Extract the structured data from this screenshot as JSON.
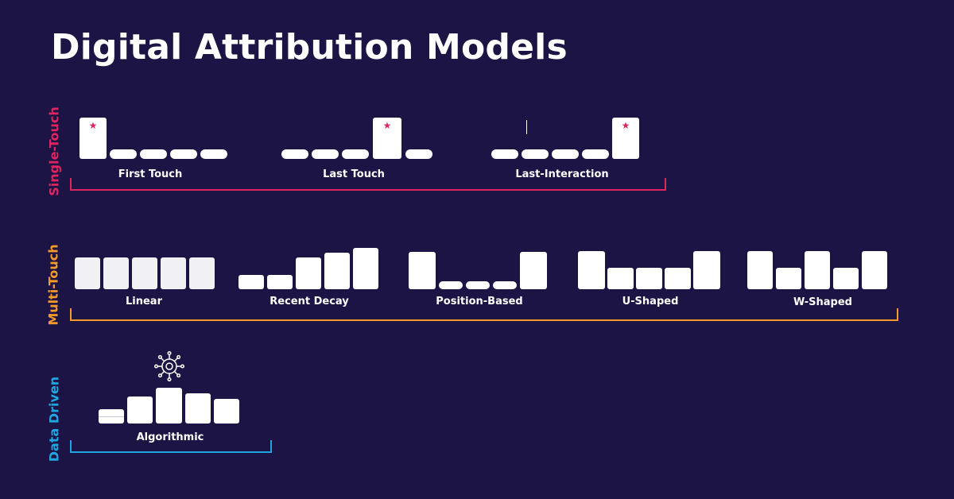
{
  "title": "Digital Attribution Models",
  "colors": {
    "background": "#1c1445",
    "single_touch": "#e0245e",
    "multi_touch": "#f39a2b",
    "data_driven": "#1fa6e0",
    "bar": "#ffffff",
    "star": "#e0245e"
  },
  "groups": {
    "single_touch": {
      "label": "Single-Touch",
      "models": [
        {
          "name": "First Touch",
          "credit_pct": [
            100,
            0,
            0,
            0,
            0
          ],
          "star_index": 0
        },
        {
          "name": "Last Touch",
          "credit_pct": [
            0,
            0,
            0,
            100,
            0
          ],
          "star_index": 3
        },
        {
          "name": "Last-Interaction",
          "credit_pct": [
            0,
            0,
            0,
            0,
            100
          ],
          "star_index": 4
        }
      ]
    },
    "multi_touch": {
      "label": "Multi-Touch",
      "models": [
        {
          "name": "Linear",
          "credit_pct": [
            20,
            20,
            20,
            20,
            20
          ]
        },
        {
          "name": "Recent Decay",
          "credit_pct": [
            6,
            6,
            13,
            16,
            19
          ]
        },
        {
          "name": "Position-Based",
          "credit_pct": [
            40,
            6.7,
            6.7,
            6.7,
            40
          ]
        },
        {
          "name": "U-Shaped",
          "credit_pct": [
            40,
            6.7,
            6.7,
            6.7,
            40
          ]
        },
        {
          "name": "W-Shaped",
          "credit_pct": [
            30,
            13,
            30,
            13,
            30
          ]
        }
      ]
    },
    "data_driven": {
      "label": "Data Driven",
      "icon": "gear-network-icon",
      "models": [
        {
          "name": "Algorithmic",
          "credit_pct": [
            12,
            22,
            30,
            25,
            20
          ]
        }
      ]
    }
  }
}
